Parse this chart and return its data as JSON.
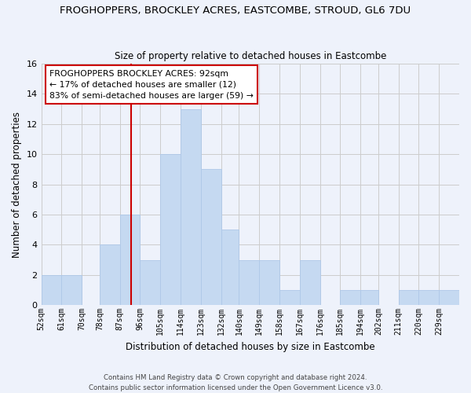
{
  "title": "FROGHOPPERS, BROCKLEY ACRES, EASTCOMBE, STROUD, GL6 7DU",
  "subtitle": "Size of property relative to detached houses in Eastcombe",
  "xlabel": "Distribution of detached houses by size in Eastcombe",
  "ylabel": "Number of detached properties",
  "bins": [
    52,
    61,
    70,
    78,
    87,
    96,
    105,
    114,
    123,
    132,
    140,
    149,
    158,
    167,
    176,
    185,
    194,
    202,
    211,
    220,
    229
  ],
  "bin_labels": [
    "52sqm",
    "61sqm",
    "70sqm",
    "78sqm",
    "87sqm",
    "96sqm",
    "105sqm",
    "114sqm",
    "123sqm",
    "132sqm",
    "140sqm",
    "149sqm",
    "158sqm",
    "167sqm",
    "176sqm",
    "185sqm",
    "194sqm",
    "202sqm",
    "211sqm",
    "220sqm",
    "229sqm"
  ],
  "counts": [
    2,
    2,
    0,
    4,
    6,
    3,
    10,
    13,
    9,
    5,
    3,
    3,
    1,
    3,
    0,
    1,
    1,
    0,
    1,
    1,
    1
  ],
  "bar_color": "#c5d9f1",
  "bar_edge_color": "#aec8e8",
  "grid_color": "#cccccc",
  "vline_x": 92,
  "vline_color": "#cc0000",
  "ylim": [
    0,
    16
  ],
  "yticks": [
    0,
    2,
    4,
    6,
    8,
    10,
    12,
    14,
    16
  ],
  "annotation_title": "FROGHOPPERS BROCKLEY ACRES: 92sqm",
  "annotation_line1": "← 17% of detached houses are smaller (12)",
  "annotation_line2": "83% of semi-detached houses are larger (59) →",
  "footer1": "Contains HM Land Registry data © Crown copyright and database right 2024.",
  "footer2": "Contains public sector information licensed under the Open Government Licence v3.0.",
  "background_color": "#eef2fb"
}
